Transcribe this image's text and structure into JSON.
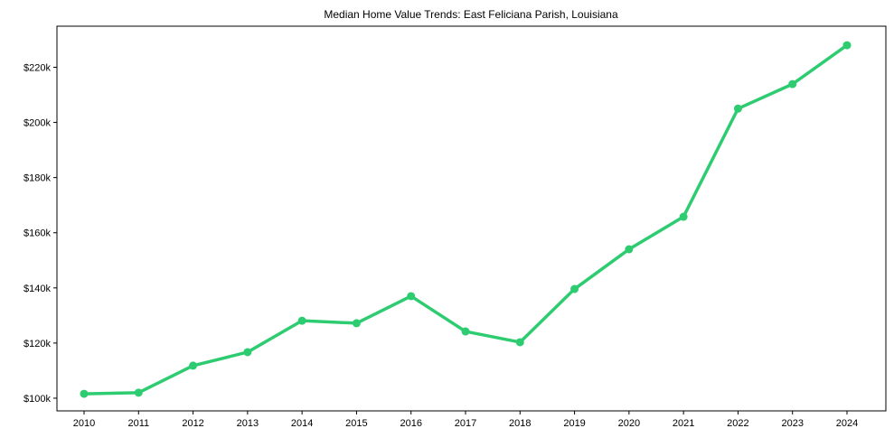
{
  "chart_data": {
    "type": "line",
    "title": "Median Home Value Trends: East Feliciana Parish, Louisiana",
    "xlabel": "",
    "ylabel": "",
    "x": [
      2010,
      2011,
      2012,
      2013,
      2014,
      2015,
      2016,
      2017,
      2018,
      2019,
      2020,
      2021,
      2022,
      2023,
      2024
    ],
    "series": [
      {
        "name": "Median Home Value",
        "color": "#2ecc71",
        "values": [
          101600,
          102000,
          111800,
          116700,
          128100,
          127200,
          137000,
          124200,
          120300,
          139600,
          154000,
          165800,
          205000,
          213900,
          228000
        ]
      }
    ],
    "ylim": [
      95400,
      234900
    ],
    "yticks": [
      100000,
      120000,
      140000,
      160000,
      180000,
      200000,
      220000
    ],
    "ytick_labels": [
      "$100k",
      "$120k",
      "$140k",
      "$160k",
      "$180k",
      "$200k",
      "$220k"
    ],
    "xtick_labels": [
      "2010",
      "2011",
      "2012",
      "2013",
      "2014",
      "2015",
      "2016",
      "2017",
      "2018",
      "2019",
      "2020",
      "2021",
      "2022",
      "2023",
      "2024"
    ],
    "grid": false,
    "legend": "none"
  }
}
